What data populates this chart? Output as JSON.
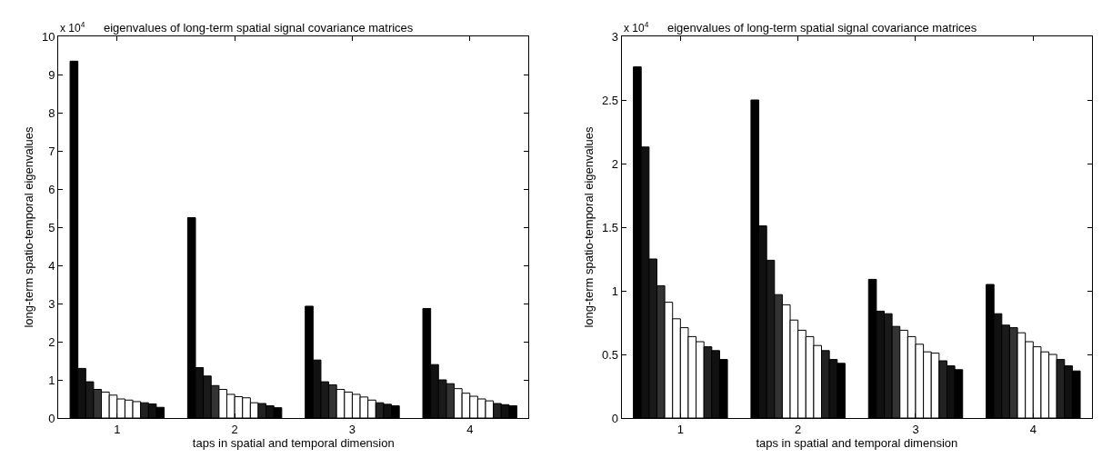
{
  "chart_data": [
    {
      "type": "bar",
      "title": "eigenvalues of long-term spatial signal covariance matrices",
      "xlabel": "taps in spatial and temporal dimension",
      "ylabel": "long-term spatio-temporal eigenvalues",
      "annotations": [
        "x 10$^{4}$"
      ],
      "categories": [
        "1",
        "2",
        "3",
        "4"
      ],
      "ylim": [
        0,
        10
      ],
      "yticks": [
        0,
        1,
        2,
        3,
        4,
        5,
        6,
        7,
        8,
        9,
        10
      ],
      "series": [
        {
          "color": "#000000",
          "values": [
            9.35,
            5.25,
            2.93,
            2.87
          ]
        },
        {
          "color": "#111111",
          "values": [
            1.3,
            1.32,
            1.52,
            1.4
          ]
        },
        {
          "color": "#1a1a1a",
          "values": [
            0.95,
            1.1,
            0.95,
            1.0
          ]
        },
        {
          "color": "#333333",
          "values": [
            0.75,
            0.85,
            0.87,
            0.9
          ]
        },
        {
          "color": "#ffffff",
          "values": [
            0.68,
            0.75,
            0.75,
            0.77
          ]
        },
        {
          "color": "#ffffff",
          "values": [
            0.6,
            0.62,
            0.68,
            0.65
          ]
        },
        {
          "color": "#ffffff",
          "values": [
            0.5,
            0.56,
            0.62,
            0.57
          ]
        },
        {
          "color": "#ffffff",
          "values": [
            0.47,
            0.53,
            0.55,
            0.5
          ]
        },
        {
          "color": "#ffffff",
          "values": [
            0.43,
            0.4,
            0.47,
            0.45
          ]
        },
        {
          "color": "#222222",
          "values": [
            0.4,
            0.38,
            0.4,
            0.38
          ]
        },
        {
          "color": "#111111",
          "values": [
            0.37,
            0.32,
            0.36,
            0.35
          ]
        },
        {
          "color": "#000000",
          "values": [
            0.28,
            0.27,
            0.32,
            0.32
          ]
        }
      ]
    },
    {
      "type": "bar",
      "title": "eigenvalues of long-term spatial signal covariance matrices",
      "xlabel": "taps in spatial and temporal dimension",
      "ylabel": "long-term spatio-temporal eigenvalues",
      "annotations": [
        "x 10$^{4}$"
      ],
      "categories": [
        "1",
        "2",
        "3",
        "4"
      ],
      "ylim": [
        0,
        3
      ],
      "yticks": [
        0,
        0.5,
        1,
        1.5,
        2,
        2.5,
        3
      ],
      "series": [
        {
          "color": "#000000",
          "values": [
            2.76,
            2.5,
            1.09,
            1.05
          ]
        },
        {
          "color": "#111111",
          "values": [
            2.13,
            1.51,
            0.84,
            0.82
          ]
        },
        {
          "color": "#1a1a1a",
          "values": [
            1.25,
            1.24,
            0.82,
            0.73
          ]
        },
        {
          "color": "#333333",
          "values": [
            1.04,
            0.97,
            0.72,
            0.71
          ]
        },
        {
          "color": "#ffffff",
          "values": [
            0.91,
            0.89,
            0.69,
            0.67
          ]
        },
        {
          "color": "#ffffff",
          "values": [
            0.78,
            0.77,
            0.64,
            0.6
          ]
        },
        {
          "color": "#ffffff",
          "values": [
            0.71,
            0.69,
            0.58,
            0.56
          ]
        },
        {
          "color": "#ffffff",
          "values": [
            0.64,
            0.64,
            0.52,
            0.52
          ]
        },
        {
          "color": "#ffffff",
          "values": [
            0.6,
            0.57,
            0.51,
            0.5
          ]
        },
        {
          "color": "#222222",
          "values": [
            0.56,
            0.53,
            0.45,
            0.46
          ]
        },
        {
          "color": "#111111",
          "values": [
            0.53,
            0.46,
            0.41,
            0.41
          ]
        },
        {
          "color": "#000000",
          "values": [
            0.46,
            0.43,
            0.38,
            0.37
          ]
        }
      ]
    }
  ]
}
